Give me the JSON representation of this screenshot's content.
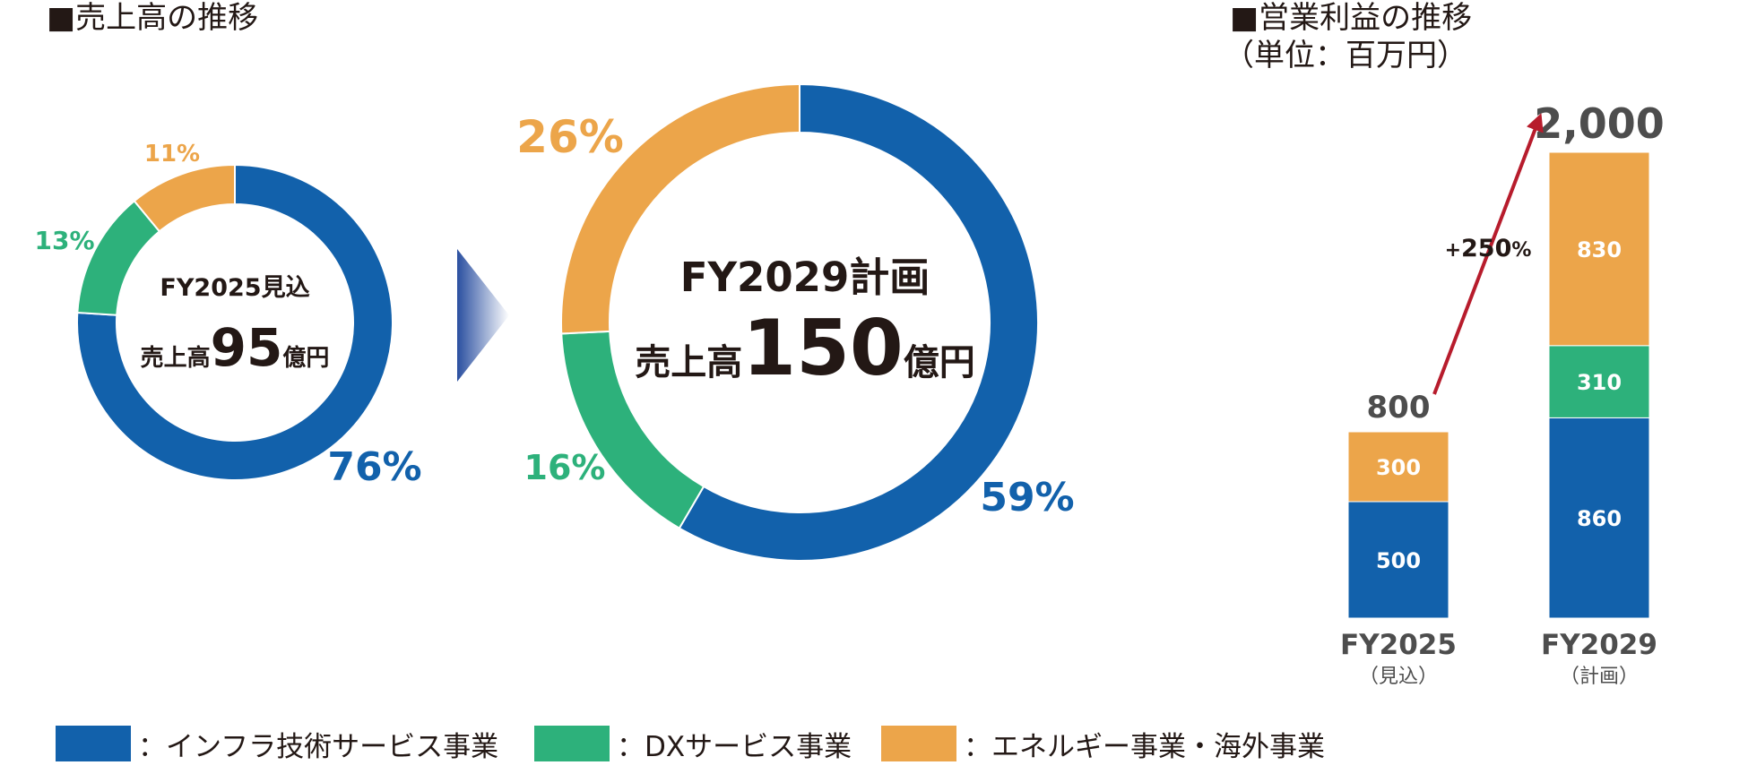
{
  "sales": {
    "title": "■売上高の推移",
    "arrow_color_from": "#2a4fa0",
    "arrow_color_to": "#ffffff"
  },
  "profit": {
    "title": "■営業利益の推移",
    "unit": "（単位：百万円）",
    "growth_label_sign": "+",
    "growth_label_value": "250",
    "growth_label_pct": "%",
    "growth_arrow_color": "#b71c2c"
  },
  "colors": {
    "infra": "#1261ab",
    "dx": "#2db17b",
    "energy": "#eca54a"
  },
  "legend": [
    {
      "key": "infra",
      "label": "：インフラ技術サービス事業"
    },
    {
      "key": "dx",
      "label": "：DXサービス事業"
    },
    {
      "key": "energy",
      "label": "：エネルギー事業・海外事業"
    }
  ],
  "chart_data": [
    {
      "type": "pie",
      "donut": true,
      "center_line1": "FY2025見込",
      "center_prefix": "売上高",
      "center_value": "95",
      "center_suffix": "億円",
      "slices": [
        {
          "key": "infra",
          "value": 76,
          "label": "76%"
        },
        {
          "key": "dx",
          "value": 13,
          "label": "13%"
        },
        {
          "key": "energy",
          "value": 11,
          "label": "11%"
        }
      ]
    },
    {
      "type": "pie",
      "donut": true,
      "center_line1": "FY2029計画",
      "center_prefix": "売上高",
      "center_value": "150",
      "center_suffix": "億円",
      "slices": [
        {
          "key": "infra",
          "value": 59,
          "label": "59%"
        },
        {
          "key": "dx",
          "value": 16,
          "label": "16%"
        },
        {
          "key": "energy",
          "value": 26,
          "label": "26%"
        }
      ]
    },
    {
      "type": "bar",
      "stacked": true,
      "categories": [
        "FY2025",
        "FY2029"
      ],
      "category_sublabels": [
        "（見込）",
        "（計画）"
      ],
      "totals": [
        800,
        2000
      ],
      "total_labels": [
        "800",
        "2,000"
      ],
      "ylim": [
        0,
        2000
      ],
      "series": [
        {
          "key": "infra",
          "values": [
            500,
            860
          ],
          "labels": [
            "500",
            "860"
          ]
        },
        {
          "key": "dx",
          "values": [
            0,
            310
          ],
          "labels": [
            "",
            "310"
          ]
        },
        {
          "key": "energy",
          "values": [
            300,
            830
          ],
          "labels": [
            "300",
            "830"
          ]
        }
      ]
    }
  ]
}
